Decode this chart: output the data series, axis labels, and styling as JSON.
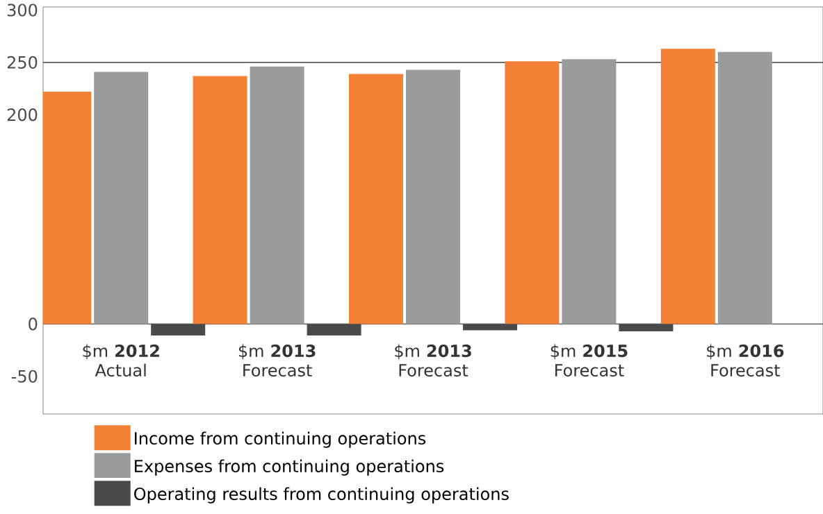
{
  "chart_data": {
    "type": "bar",
    "categories": [
      "$m **2012** Actual",
      "$m **2013** Forecast",
      "$m **2013** Forecast",
      "$m **2015** Forecast",
      "$m **2016** Forecast"
    ],
    "series": [
      {
        "name": "Income from continuing operations",
        "color": "#f38135",
        "values": [
          222,
          237,
          239,
          251,
          263
        ]
      },
      {
        "name": "Expenses from continuing operations",
        "color": "#9a9b9d",
        "values": [
          241,
          246,
          243,
          253,
          260
        ]
      },
      {
        "name": "Operating results from continuing operations",
        "color": "#4a4a4c",
        "values": [
          -11,
          -11,
          -6,
          -7,
          null
        ]
      }
    ],
    "ylim": [
      -86,
      303
    ],
    "yticks": [
      -50,
      0,
      200,
      250,
      300
    ],
    "ref_lines": [
      {
        "axis": "y",
        "value": 250,
        "color": "#5a5a5a"
      },
      {
        "axis": "y",
        "value": 0,
        "color": "#5a5a5a"
      }
    ],
    "legend": "bottom left"
  }
}
